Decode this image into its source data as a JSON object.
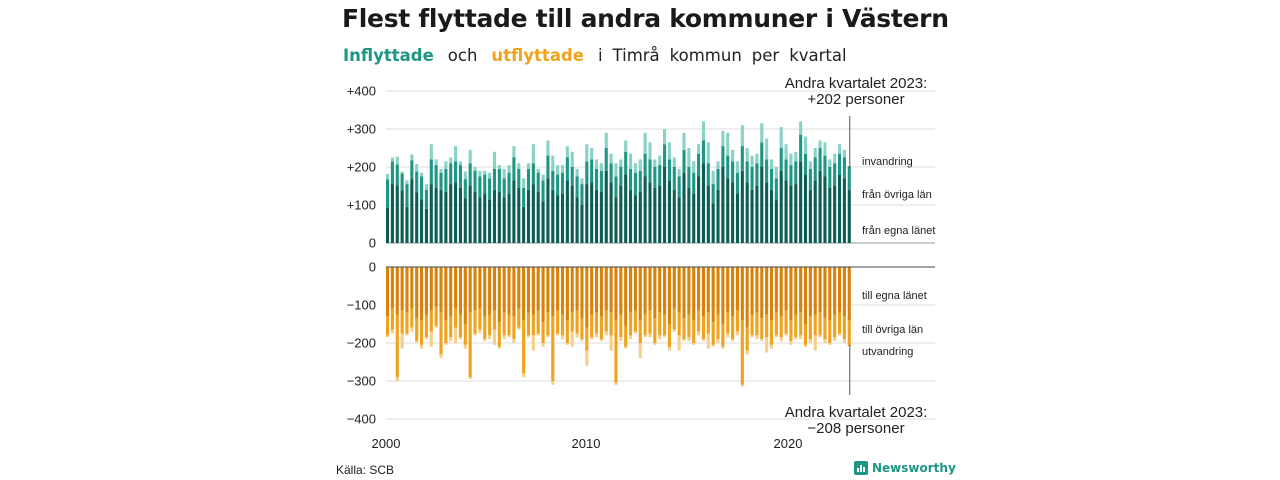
{
  "title": "Flest flyttade till andra kommuner i Västernorrland",
  "subtitle": {
    "inflyttade": "Inflyttade",
    "och": "och",
    "utflyttade": "utflyttade",
    "rest": [
      "i",
      "Timrå",
      "kommun",
      "per",
      "kvartal"
    ]
  },
  "source": "Källa: SCB",
  "brand": "Newsworthy",
  "colors": {
    "in_egna": "#0b5e53",
    "in_ovriga": "#1f9684",
    "in_utland": "#8ad2c6",
    "ut_egna": "#d9820a",
    "ut_ovriga": "#f0a21c",
    "ut_utland": "#f6d08a"
  },
  "chart_data": {
    "type": "bar",
    "x_start": "2000 Q1",
    "x_end": "2023 Q2",
    "x_ticks": [
      "2000",
      "2010",
      "2020"
    ],
    "top": {
      "ylim": [
        0,
        400
      ],
      "y_ticks": [
        "0",
        "+100",
        "+200",
        "+300",
        "+400"
      ],
      "series_labels": [
        "invandring",
        "från övriga län",
        "från egna länet"
      ],
      "annotation": [
        "Andra kvartalet 2023:",
        "+202 personer"
      ],
      "egna": [
        92,
        155,
        152,
        138,
        95,
        168,
        133,
        115,
        90,
        155,
        145,
        140,
        135,
        155,
        160,
        145,
        118,
        150,
        135,
        120,
        130,
        115,
        140,
        135,
        120,
        130,
        165,
        145,
        95,
        140,
        155,
        135,
        110,
        170,
        140,
        125,
        130,
        165,
        150,
        120,
        100,
        155,
        160,
        140,
        135,
        190,
        160,
        120,
        150,
        180,
        140,
        125,
        135,
        175,
        160,
        145,
        150,
        200,
        165,
        140,
        120,
        185,
        145,
        130,
        175,
        210,
        150,
        105,
        140,
        200,
        170,
        160,
        130,
        190,
        160,
        140,
        150,
        200,
        160,
        140,
        115,
        190,
        165,
        150,
        155,
        215,
        180,
        140,
        165,
        190,
        175,
        145,
        150,
        180,
        170,
        140
      ],
      "ovriga": [
        75,
        60,
        55,
        45,
        60,
        50,
        55,
        60,
        50,
        65,
        60,
        45,
        60,
        55,
        55,
        60,
        50,
        60,
        55,
        55,
        50,
        55,
        55,
        60,
        50,
        55,
        60,
        50,
        50,
        55,
        55,
        50,
        55,
        60,
        50,
        55,
        55,
        60,
        50,
        55,
        55,
        60,
        60,
        55,
        55,
        60,
        50,
        55,
        50,
        60,
        55,
        60,
        55,
        60,
        60,
        55,
        55,
        60,
        55,
        60,
        55,
        60,
        55,
        55,
        60,
        60,
        60,
        50,
        55,
        55,
        60,
        55,
        55,
        65,
        55,
        60,
        60,
        65,
        60,
        55,
        55,
        60,
        55,
        55,
        60,
        70,
        55,
        55,
        60,
        60,
        55,
        55,
        60,
        55,
        55,
        62
      ],
      "utland": [
        15,
        10,
        20,
        5,
        10,
        15,
        20,
        10,
        15,
        40,
        15,
        10,
        20,
        15,
        40,
        10,
        20,
        35,
        10,
        15,
        10,
        15,
        45,
        10,
        25,
        20,
        30,
        15,
        25,
        15,
        50,
        10,
        15,
        40,
        40,
        25,
        20,
        30,
        40,
        20,
        15,
        45,
        30,
        25,
        20,
        40,
        25,
        35,
        20,
        30,
        40,
        25,
        30,
        55,
        45,
        20,
        25,
        40,
        45,
        25,
        20,
        45,
        50,
        30,
        25,
        50,
        55,
        35,
        20,
        40,
        60,
        30,
        30,
        55,
        35,
        30,
        25,
        50,
        55,
        25,
        30,
        55,
        40,
        30,
        25,
        35,
        45,
        20,
        25,
        20,
        35,
        20,
        25,
        25,
        20,
        0
      ]
    },
    "bottom": {
      "ylim": [
        -400,
        0
      ],
      "y_ticks": [
        "0",
        "−100",
        "−200",
        "−300",
        "−400"
      ],
      "series_labels": [
        "till egna länet",
        "till övriga län",
        "utvandring"
      ],
      "annotation": [
        "Andra kvartalet 2023:",
        "−208 personer"
      ],
      "egna": [
        -130,
        -110,
        -125,
        -115,
        -120,
        -110,
        -135,
        -140,
        -125,
        -115,
        -105,
        -120,
        -140,
        -130,
        -110,
        -125,
        -150,
        -120,
        -115,
        -110,
        -130,
        -125,
        -115,
        -145,
        -120,
        -125,
        -130,
        -110,
        -140,
        -120,
        -125,
        -115,
        -145,
        -120,
        -130,
        -115,
        -125,
        -140,
        -120,
        -115,
        -135,
        -160,
        -125,
        -120,
        -130,
        -115,
        -120,
        -140,
        -125,
        -155,
        -120,
        -115,
        -140,
        -125,
        -115,
        -135,
        -120,
        -125,
        -150,
        -110,
        -120,
        -135,
        -125,
        -140,
        -115,
        -130,
        -120,
        -145,
        -125,
        -150,
        -120,
        -130,
        -115,
        -140,
        -160,
        -125,
        -120,
        -135,
        -125,
        -140,
        -120,
        -130,
        -115,
        -140,
        -125,
        -120,
        -150,
        -130,
        -125,
        -120,
        -135,
        -140,
        -125,
        -120,
        -130,
        -140
      ],
      "ovriga": [
        -50,
        -55,
        -165,
        -60,
        -55,
        -50,
        -60,
        -65,
        -60,
        -55,
        -50,
        -110,
        -60,
        -55,
        -50,
        -60,
        -55,
        -170,
        -60,
        -55,
        -60,
        -55,
        -50,
        -65,
        -60,
        -55,
        -60,
        -50,
        -140,
        -60,
        -55,
        -60,
        -55,
        -60,
        -170,
        -60,
        -55,
        -60,
        -50,
        -60,
        -55,
        -60,
        -60,
        -55,
        -60,
        -55,
        -60,
        -165,
        -60,
        -55,
        -60,
        -55,
        -60,
        -55,
        -60,
        -65,
        -60,
        -55,
        -60,
        -55,
        -60,
        -55,
        -60,
        -60,
        -55,
        -60,
        -55,
        -60,
        -65,
        -60,
        -55,
        -60,
        -55,
        -170,
        -60,
        -55,
        -60,
        -55,
        -60,
        -65,
        -60,
        -55,
        -60,
        -55,
        -60,
        -60,
        -55,
        -60,
        -55,
        -60,
        -55,
        -60,
        -60,
        -55,
        -60,
        -68
      ],
      "utland": [
        -5,
        -10,
        -10,
        -40,
        -5,
        -10,
        -5,
        -10,
        -5,
        -40,
        -5,
        -10,
        -5,
        -10,
        -40,
        -5,
        -10,
        -5,
        -5,
        -10,
        -5,
        -10,
        -40,
        -5,
        -10,
        -5,
        -10,
        -5,
        -10,
        -5,
        -40,
        -5,
        -10,
        -5,
        -10,
        -5,
        -10,
        -5,
        -40,
        -10,
        -5,
        -40,
        -5,
        -10,
        -5,
        -10,
        -40,
        -5,
        -10,
        -5,
        -10,
        -5,
        -40,
        -5,
        -10,
        -5,
        -10,
        -5,
        -10,
        -5,
        -40,
        -5,
        -10,
        -5,
        -10,
        -5,
        -40,
        -5,
        -10,
        -5,
        -10,
        -5,
        -10,
        -5,
        -10,
        -5,
        -10,
        -5,
        -40,
        -10,
        -5,
        -10,
        -5,
        -10,
        -5,
        -10,
        -5,
        -10,
        -40,
        -5,
        -10,
        -5,
        -10,
        -5,
        -10,
        0
      ]
    }
  }
}
